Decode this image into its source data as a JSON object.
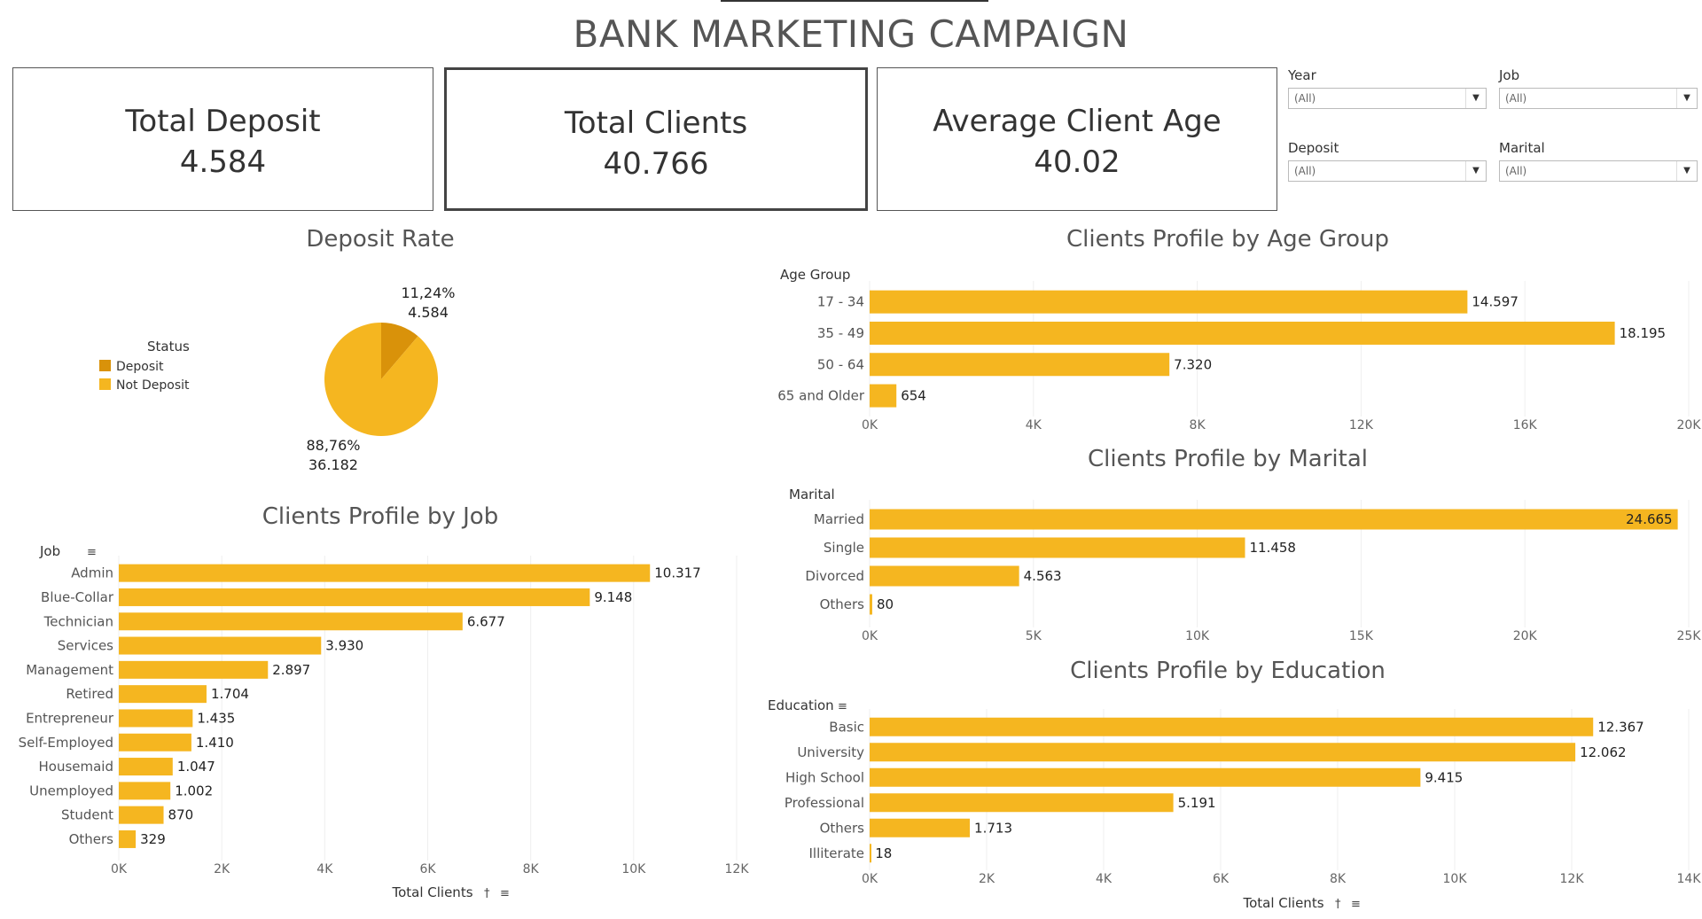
{
  "dashboard": {
    "title": "BANK MARKETING CAMPAIGN"
  },
  "kpis": [
    {
      "label": "Total Deposit",
      "value": "4.584"
    },
    {
      "label": "Total Clients",
      "value": "40.766"
    },
    {
      "label": "Average Client Age",
      "value": "40.02"
    }
  ],
  "filters": [
    {
      "label": "Year",
      "value": "(All)"
    },
    {
      "label": "Job",
      "value": "(All)"
    },
    {
      "label": "Deposit",
      "value": "(All)"
    },
    {
      "label": "Marital",
      "value": "(All)"
    }
  ],
  "colors": {
    "bar": "#F5B620",
    "deposit": "#D9920A",
    "not_deposit": "#F5B620"
  },
  "chart_data": [
    {
      "type": "pie",
      "title": "Deposit Rate",
      "legend_title": "Status",
      "legend_placement": "left",
      "slices": [
        {
          "name": "Deposit",
          "value": 4584,
          "pct_label": "11,24%",
          "value_label": "4.584"
        },
        {
          "name": "Not Deposit",
          "value": 36182,
          "pct_label": "88,76%",
          "value_label": "36.182"
        }
      ]
    },
    {
      "type": "bar",
      "orientation": "horizontal",
      "title": "Clients Profile by Age Group",
      "ylabel": "Age Group",
      "categories": [
        "17 - 34",
        "35 - 49",
        "50 - 64",
        "65 and Older"
      ],
      "values": [
        14597,
        18195,
        7320,
        654
      ],
      "value_labels": [
        "14.597",
        "18.195",
        "7.320",
        "654"
      ],
      "xlim": [
        0,
        20000
      ],
      "ticks": [
        "0K",
        "4K",
        "8K",
        "12K",
        "16K",
        "20K"
      ]
    },
    {
      "type": "bar",
      "orientation": "horizontal",
      "title": "Clients Profile by Marital",
      "ylabel": "Marital",
      "categories": [
        "Married",
        "Single",
        "Divorced",
        "Others"
      ],
      "values": [
        24665,
        11458,
        4563,
        80
      ],
      "value_labels": [
        "24.665",
        "11.458",
        "4.563",
        "80"
      ],
      "xlim": [
        0,
        25000
      ],
      "ticks": [
        "0K",
        "5K",
        "10K",
        "15K",
        "20K",
        "25K"
      ]
    },
    {
      "type": "bar",
      "orientation": "horizontal",
      "title": "Clients Profile by Job",
      "ylabel": "Job",
      "xlabel": "Total Clients",
      "categories": [
        "Admin",
        "Blue-Collar",
        "Technician",
        "Services",
        "Management",
        "Retired",
        "Entrepreneur",
        "Self-Employed",
        "Housemaid",
        "Unemployed",
        "Student",
        "Others"
      ],
      "values": [
        10317,
        9148,
        6677,
        3930,
        2897,
        1704,
        1435,
        1410,
        1047,
        1002,
        870,
        329
      ],
      "value_labels": [
        "10.317",
        "9.148",
        "6.677",
        "3.930",
        "2.897",
        "1.704",
        "1.435",
        "1.410",
        "1.047",
        "1.002",
        "870",
        "329"
      ],
      "xlim": [
        0,
        12000
      ],
      "ticks": [
        "0K",
        "2K",
        "4K",
        "6K",
        "8K",
        "10K",
        "12K"
      ]
    },
    {
      "type": "bar",
      "orientation": "horizontal",
      "title": "Clients Profile by Education",
      "ylabel": "Education",
      "xlabel": "Total Clients",
      "categories": [
        "Basic",
        "University",
        "High School",
        "Professional",
        "Others",
        "Illiterate"
      ],
      "values": [
        12367,
        12062,
        9415,
        5191,
        1713,
        18
      ],
      "value_labels": [
        "12.367",
        "12.062",
        "9.415",
        "5.191",
        "1.713",
        "18"
      ],
      "xlim": [
        0,
        14000
      ],
      "ticks": [
        "0K",
        "2K",
        "4K",
        "6K",
        "8K",
        "10K",
        "12K",
        "14K"
      ]
    }
  ]
}
